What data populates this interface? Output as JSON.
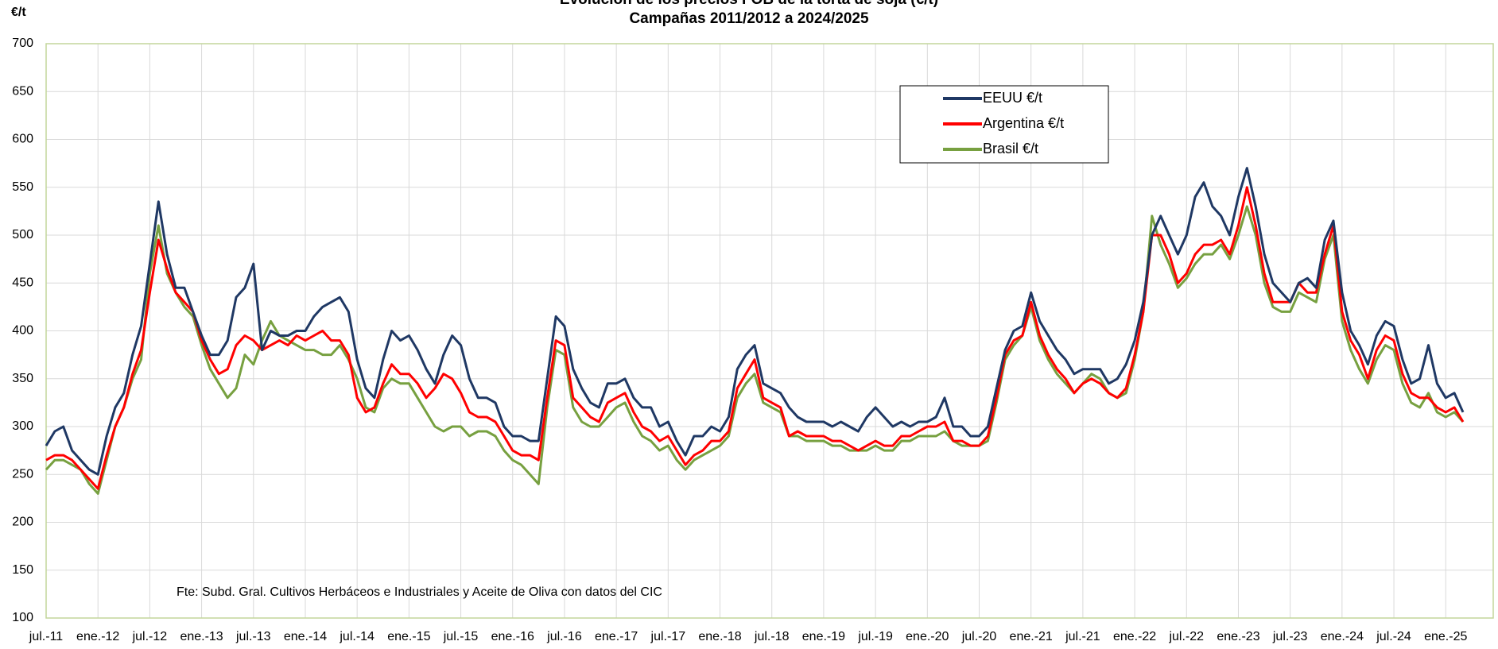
{
  "chart_data": {
    "type": "line",
    "title": "Evolución de los precios FOB de la torta de soja (€/t)",
    "subtitle": "Campañas 2011/2012 a 2024/2025",
    "y_label": "€/t",
    "annotation": "Fte: Subd. Gral. Cultivos Herbáceos e Industriales y Aceite de Oliva con datos del CIC",
    "categories": [
      "jul.-11",
      null,
      null,
      null,
      null,
      null,
      "ene.-12",
      null,
      null,
      null,
      null,
      null,
      "jul.-12",
      null,
      null,
      null,
      null,
      null,
      "ene.-13",
      null,
      null,
      null,
      null,
      null,
      "jul.-13",
      null,
      null,
      null,
      null,
      null,
      "ene.-14",
      null,
      null,
      null,
      null,
      null,
      "jul.-14",
      null,
      null,
      null,
      null,
      null,
      "ene.-15",
      null,
      null,
      null,
      null,
      null,
      "jul.-15",
      null,
      null,
      null,
      null,
      null,
      "ene.-16",
      null,
      null,
      null,
      null,
      null,
      "jul.-16",
      null,
      null,
      null,
      null,
      null,
      "ene.-17",
      null,
      null,
      null,
      null,
      null,
      "jul.-17",
      null,
      null,
      null,
      null,
      null,
      "ene.-18",
      null,
      null,
      null,
      null,
      null,
      "jul.-18",
      null,
      null,
      null,
      null,
      null,
      "ene.-19",
      null,
      null,
      null,
      null,
      null,
      "jul.-19",
      null,
      null,
      null,
      null,
      null,
      "ene.-20",
      null,
      null,
      null,
      null,
      null,
      "jul.-20",
      null,
      null,
      null,
      null,
      null,
      "ene.-21",
      null,
      null,
      null,
      null,
      null,
      "jul.-21",
      null,
      null,
      null,
      null,
      null,
      "ene.-22",
      null,
      null,
      null,
      null,
      null,
      "jul.-22",
      null,
      null,
      null,
      null,
      null,
      "ene.-23",
      null,
      null,
      null,
      null,
      null,
      "jul.-23",
      null,
      null,
      null,
      null,
      null,
      "ene.-24",
      null,
      null,
      null,
      null,
      null,
      "jul.-24",
      null,
      null,
      null,
      null,
      null,
      "ene.-25",
      null,
      null
    ],
    "series": [
      {
        "name": "EEUU €/t",
        "color": "#1f3864",
        "values": [
          280,
          295,
          300,
          275,
          265,
          255,
          250,
          290,
          320,
          335,
          375,
          405,
          470,
          535,
          480,
          445,
          445,
          420,
          395,
          375,
          375,
          390,
          435,
          445,
          470,
          380,
          400,
          395,
          395,
          400,
          400,
          415,
          425,
          430,
          435,
          420,
          370,
          340,
          330,
          370,
          400,
          390,
          395,
          380,
          360,
          345,
          375,
          395,
          385,
          350,
          330,
          330,
          325,
          300,
          290,
          290,
          285,
          285,
          350,
          415,
          405,
          360,
          340,
          325,
          320,
          345,
          345,
          350,
          330,
          320,
          320,
          300,
          305,
          285,
          270,
          290,
          290,
          300,
          295,
          310,
          360,
          375,
          385,
          345,
          340,
          335,
          320,
          310,
          305,
          305,
          305,
          300,
          305,
          300,
          295,
          310,
          320,
          310,
          300,
          305,
          300,
          305,
          305,
          310,
          330,
          300,
          300,
          290,
          290,
          300,
          340,
          380,
          400,
          405,
          440,
          410,
          395,
          380,
          370,
          355,
          360,
          360,
          360,
          345,
          350,
          365,
          390,
          430,
          500,
          520,
          500,
          480,
          500,
          540,
          555,
          530,
          520,
          500,
          540,
          570,
          530,
          480,
          450,
          440,
          430,
          450,
          455,
          445,
          495,
          515,
          440,
          400,
          385,
          365,
          395,
          410,
          405,
          370,
          345,
          350,
          385,
          345,
          330,
          335,
          315
        ]
      },
      {
        "name": "Argentina €/t",
        "color": "#ff0000",
        "values": [
          265,
          270,
          270,
          265,
          255,
          245,
          235,
          270,
          300,
          320,
          355,
          380,
          440,
          495,
          465,
          440,
          430,
          420,
          390,
          370,
          355,
          360,
          385,
          395,
          390,
          380,
          385,
          390,
          385,
          395,
          390,
          395,
          400,
          390,
          390,
          375,
          330,
          315,
          320,
          345,
          365,
          355,
          355,
          345,
          330,
          340,
          355,
          350,
          335,
          315,
          310,
          310,
          305,
          290,
          275,
          270,
          270,
          265,
          330,
          390,
          385,
          330,
          320,
          310,
          305,
          325,
          330,
          335,
          315,
          300,
          295,
          285,
          290,
          275,
          260,
          270,
          275,
          285,
          285,
          295,
          340,
          355,
          370,
          330,
          325,
          320,
          290,
          295,
          290,
          290,
          290,
          285,
          285,
          280,
          275,
          280,
          285,
          280,
          280,
          290,
          290,
          295,
          300,
          300,
          305,
          285,
          285,
          280,
          280,
          290,
          330,
          375,
          390,
          395,
          430,
          395,
          375,
          360,
          350,
          335,
          345,
          350,
          345,
          335,
          330,
          340,
          375,
          420,
          500,
          500,
          480,
          450,
          460,
          480,
          490,
          490,
          495,
          480,
          510,
          550,
          510,
          460,
          430,
          430,
          430,
          450,
          440,
          440,
          480,
          510,
          420,
          390,
          375,
          350,
          380,
          395,
          390,
          355,
          335,
          330,
          330,
          320,
          315,
          320,
          305
        ]
      },
      {
        "name": "Brasil €/t",
        "color": "#77a040",
        "values": [
          255,
          265,
          265,
          260,
          255,
          240,
          230,
          265,
          300,
          320,
          350,
          370,
          460,
          510,
          460,
          440,
          425,
          415,
          385,
          360,
          345,
          330,
          340,
          375,
          365,
          390,
          410,
          395,
          390,
          385,
          380,
          380,
          375,
          375,
          385,
          370,
          350,
          320,
          315,
          340,
          350,
          345,
          345,
          330,
          315,
          300,
          295,
          300,
          300,
          290,
          295,
          295,
          290,
          275,
          265,
          260,
          250,
          240,
          320,
          380,
          375,
          320,
          305,
          300,
          300,
          310,
          320,
          325,
          305,
          290,
          285,
          275,
          280,
          265,
          255,
          265,
          270,
          275,
          280,
          290,
          330,
          345,
          355,
          325,
          320,
          315,
          290,
          290,
          285,
          285,
          285,
          280,
          280,
          275,
          275,
          275,
          280,
          275,
          275,
          285,
          285,
          290,
          290,
          290,
          295,
          285,
          280,
          280,
          280,
          285,
          325,
          370,
          385,
          395,
          425,
          390,
          370,
          355,
          345,
          335,
          345,
          355,
          350,
          335,
          330,
          335,
          370,
          420,
          520,
          490,
          470,
          445,
          455,
          470,
          480,
          480,
          490,
          475,
          500,
          530,
          500,
          450,
          425,
          420,
          420,
          440,
          435,
          430,
          475,
          500,
          410,
          380,
          360,
          345,
          370,
          385,
          380,
          345,
          325,
          320,
          335,
          315,
          310,
          315,
          305
        ]
      }
    ],
    "ylim": [
      100,
      700
    ],
    "yticks": [
      100,
      150,
      200,
      250,
      300,
      350,
      400,
      450,
      500,
      550,
      600,
      650,
      700
    ],
    "grid": true,
    "legend": "upper right"
  }
}
